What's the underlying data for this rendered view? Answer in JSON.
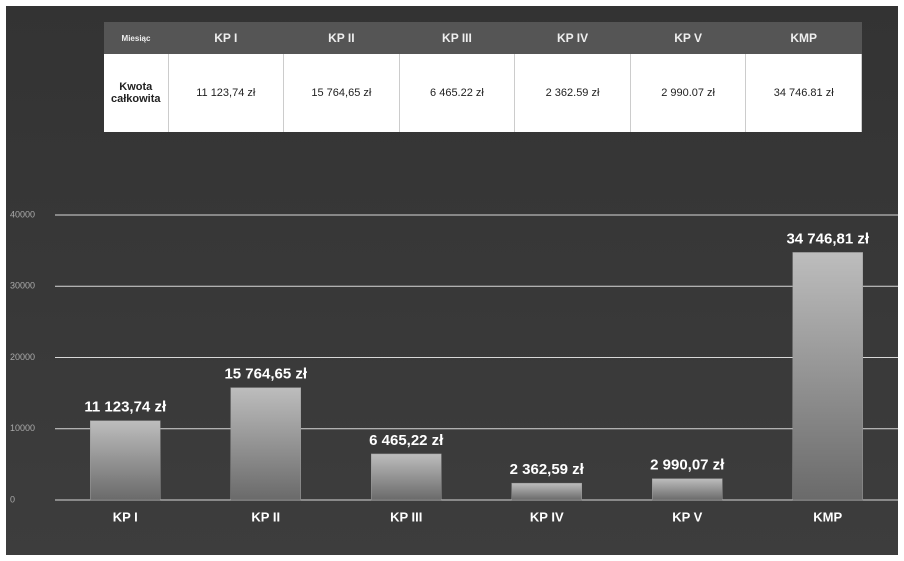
{
  "table": {
    "header": [
      "Miesiąc",
      "KP I",
      "KP II",
      "KP III",
      "KP IV",
      "KP V",
      "KMP"
    ],
    "row": [
      "Kwota całkowita",
      "11 123,74 zł",
      "15 764,65 zł",
      "6 465.22 zł",
      "2 362.59 zł",
      "2 990.07 zł",
      "34 746.81 zł"
    ]
  },
  "chart_data": {
    "type": "bar",
    "categories": [
      "KP I",
      "KP II",
      "KP III",
      "KP IV",
      "KP V",
      "KMP"
    ],
    "values": [
      11123.74,
      15764.65,
      6465.22,
      2362.59,
      2990.07,
      34746.81
    ],
    "value_labels": [
      "11 123,74 zł",
      "15 764,65 zł",
      "6 465,22 zł",
      "2 362,59 zł",
      "2 990,07 zł",
      "34 746,81 zł"
    ],
    "color": "#9a9a9a",
    "ylim": [
      0,
      40000
    ],
    "yticks": [
      0,
      10000,
      20000,
      30000,
      40000
    ],
    "grid": true
  }
}
